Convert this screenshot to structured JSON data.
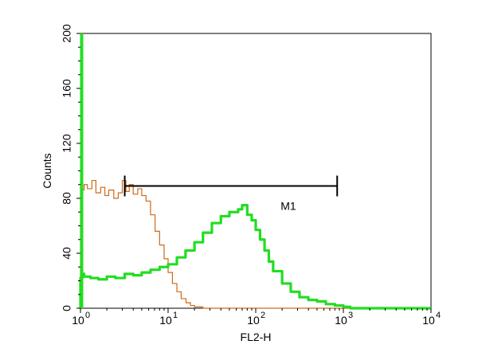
{
  "chart_data": {
    "type": "line",
    "title": "",
    "xlabel": "FL2-H",
    "ylabel": "Counts",
    "x_scale": "log",
    "xlim": [
      1,
      10000
    ],
    "ylim": [
      0,
      200
    ],
    "grid": false,
    "x_ticks": [
      {
        "value": 1,
        "base": "10",
        "exp": "0"
      },
      {
        "value": 10,
        "base": "10",
        "exp": "1"
      },
      {
        "value": 100,
        "base": "10",
        "exp": "2"
      },
      {
        "value": 1000,
        "base": "10",
        "exp": "3"
      },
      {
        "value": 10000,
        "base": "10",
        "exp": "4"
      }
    ],
    "y_ticks": [
      0,
      40,
      80,
      120,
      160,
      200
    ],
    "gate": {
      "label": "M1",
      "x_start": 3.2,
      "x_end": 850,
      "y": 89
    },
    "series": [
      {
        "name": "",
        "color": "#cc6a1a",
        "x": [
          1.0,
          1.05,
          1.1,
          1.2,
          1.35,
          1.5,
          1.7,
          1.9,
          2.1,
          2.4,
          2.7,
          3.0,
          3.3,
          3.6,
          4.0,
          4.5,
          5.0,
          5.6,
          6.3,
          7.1,
          8.0,
          9.0,
          10,
          11.2,
          12.6,
          14.1,
          16,
          18,
          20,
          25,
          40,
          100,
          1000,
          10000
        ],
        "y": [
          92,
          86,
          90,
          87,
          93,
          84,
          88,
          82,
          86,
          80,
          84,
          93,
          85,
          90,
          83,
          87,
          82,
          78,
          68,
          56,
          46,
          36,
          26,
          18,
          12,
          7,
          4,
          2,
          1,
          0,
          0,
          0,
          0,
          0
        ]
      },
      {
        "name": "",
        "color": "#22dd22",
        "x": [
          1.0,
          1.05,
          1.1,
          1.3,
          1.6,
          2.0,
          2.5,
          3.2,
          4.0,
          5.0,
          6.3,
          8.0,
          10,
          12.6,
          15.8,
          20,
          25,
          31.6,
          40,
          50,
          63,
          70,
          80,
          90,
          100,
          112,
          126,
          141,
          158,
          200,
          251,
          316,
          398,
          501,
          631,
          800,
          1000,
          1200,
          10000
        ],
        "y": [
          22,
          25,
          23,
          22,
          21,
          23,
          22,
          25,
          24,
          26,
          28,
          30,
          32,
          37,
          42,
          48,
          55,
          62,
          67,
          70,
          72,
          75,
          68,
          64,
          57,
          50,
          42,
          34,
          27,
          18,
          12,
          8,
          6,
          5,
          3,
          2,
          1,
          0,
          0
        ]
      }
    ]
  }
}
